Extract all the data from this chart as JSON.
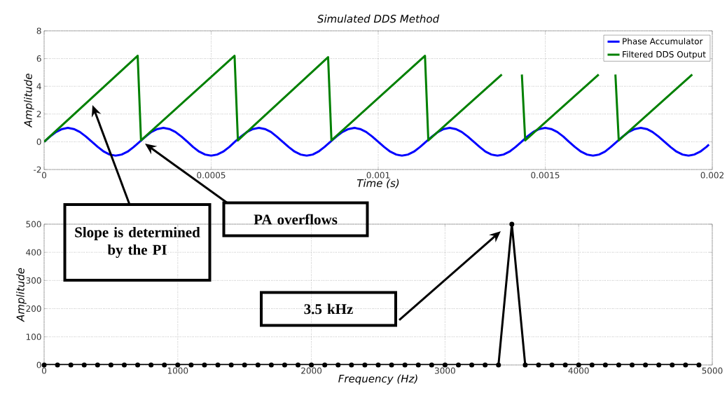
{
  "chart_data": [
    {
      "type": "line",
      "title": "Simulated DDS Method",
      "xlabel": "Time (s)",
      "ylabel": "Amplitude",
      "xlim": [
        0,
        0.002
      ],
      "ylim": [
        -2,
        8
      ],
      "xticks": [
        0,
        0.0005,
        0.001,
        0.0015,
        0.002
      ],
      "yticks": [
        -2,
        0,
        2,
        4,
        6,
        8
      ],
      "grid": true,
      "legend": "top right",
      "series": [
        {
          "name": "Phase Accumulator",
          "color": "#0000ff",
          "x": [
            0,
            1.8e-05,
            3.6e-05,
            5.4e-05,
            7.1e-05,
            8.9e-05,
            0.000107,
            0.000125,
            0.000143,
            0.000161,
            0.000179,
            0.000196,
            0.000214,
            0.000232,
            0.00025,
            0.000268,
            0.000286,
            0.000304,
            0.000321,
            0.000339,
            0.000357,
            0.000375,
            0.000393,
            0.000411,
            0.000429,
            0.000446,
            0.000464,
            0.000482,
            0.0005,
            0.000518,
            0.000536,
            0.000554,
            0.000571,
            0.000589,
            0.000607,
            0.000625,
            0.000643,
            0.000661,
            0.000679,
            0.000696,
            0.000714,
            0.000732,
            0.00075,
            0.000768,
            0.000786,
            0.000804,
            0.000821,
            0.000839,
            0.000857,
            0.000875,
            0.000893,
            0.000911,
            0.000929,
            0.000946,
            0.000964,
            0.000982,
            0.001,
            0.001018,
            0.001036,
            0.001054,
            0.001071,
            0.001089,
            0.001107,
            0.001125,
            0.001143,
            0.001161,
            0.001179,
            0.001196,
            0.001214,
            0.001232,
            0.00125,
            0.001268,
            0.001286,
            0.001304,
            0.001321,
            0.001339,
            0.001357,
            0.001375,
            0.001393,
            0.001411,
            0.001429,
            0.001446,
            0.001464,
            0.001482,
            0.0015,
            0.001518,
            0.001536,
            0.001554,
            0.001571,
            0.001589,
            0.001607,
            0.001625,
            0.001643,
            0.001661,
            0.001679,
            0.001696,
            0.001714,
            0.001732,
            0.00175,
            0.001768,
            0.001786,
            0.001804,
            0.001821,
            0.001839,
            0.001857,
            0.001875,
            0.001893,
            0.001911,
            0.001929,
            0.001946,
            0.001964,
            0.001982,
            0.00199
          ],
          "values": [
            0,
            0.38,
            0.71,
            0.92,
            1,
            0.92,
            0.71,
            0.38,
            0,
            -0.38,
            -0.71,
            -0.92,
            -1,
            -0.92,
            -0.71,
            -0.38,
            0,
            0.38,
            0.71,
            0.92,
            1,
            0.92,
            0.71,
            0.38,
            0,
            -0.38,
            -0.71,
            -0.92,
            -1,
            -0.92,
            -0.71,
            -0.38,
            0,
            0.38,
            0.71,
            0.92,
            1,
            0.92,
            0.71,
            0.38,
            0,
            -0.38,
            -0.71,
            -0.92,
            -1,
            -0.92,
            -0.71,
            -0.38,
            0,
            0.38,
            0.71,
            0.92,
            1,
            0.92,
            0.71,
            0.38,
            0,
            -0.38,
            -0.71,
            -0.92,
            -1,
            -0.92,
            -0.71,
            -0.38,
            0,
            0.38,
            0.71,
            0.92,
            1,
            0.92,
            0.71,
            0.38,
            0,
            -0.38,
            -0.71,
            -0.92,
            -1,
            -0.92,
            -0.71,
            -0.38,
            0,
            0.38,
            0.71,
            0.92,
            1,
            0.92,
            0.71,
            0.38,
            0,
            -0.38,
            -0.71,
            -0.92,
            -1,
            -0.92,
            -0.71,
            -0.38,
            0,
            0.38,
            0.71,
            0.92,
            1,
            0.92,
            0.71,
            0.38,
            0,
            -0.38,
            -0.71,
            -0.92,
            -1,
            -0.92,
            -0.71,
            -0.38,
            -0.2
          ]
        },
        {
          "name": "Filtered DDS Output",
          "color": "#008000",
          "x": [
            0,
            0.00028,
            0.00029,
            0.00057,
            0.00058,
            0.00085,
            0.00086,
            0.00114,
            0.00115,
            0.00137,
            0.0014,
            0.00143,
            0.00144,
            0.00166,
            0.0017,
            0.00171,
            0.00172,
            0.00194
          ],
          "values": [
            0,
            6.2,
            0.1,
            6.2,
            0.1,
            6.1,
            0.1,
            6.2,
            0.1,
            4.85,
            null,
            4.85,
            0.1,
            4.85,
            null,
            4.85,
            0.1,
            4.85
          ]
        }
      ],
      "annotations": [
        "Slope is determined by the PI",
        "PA overflows"
      ]
    },
    {
      "type": "line",
      "xlabel": "Frequency (Hz)",
      "ylabel": "Amplitude",
      "xlim": [
        0,
        5000
      ],
      "ylim": [
        0,
        500
      ],
      "xticks": [
        0,
        1000,
        2000,
        3000,
        4000,
        5000
      ],
      "yticks": [
        0,
        100,
        200,
        300,
        400,
        500
      ],
      "grid": true,
      "marker": "circle",
      "series": [
        {
          "color": "#000000",
          "x": [
            0,
            100,
            200,
            300,
            400,
            500,
            600,
            700,
            800,
            900,
            1000,
            1100,
            1200,
            1300,
            1400,
            1500,
            1600,
            1700,
            1800,
            1900,
            2000,
            2100,
            2200,
            2300,
            2400,
            2500,
            2600,
            2700,
            2800,
            2900,
            3000,
            3100,
            3200,
            3300,
            3400,
            3500,
            3600,
            3700,
            3800,
            3900,
            4000,
            4100,
            4200,
            4300,
            4400,
            4500,
            4600,
            4700,
            4800,
            4900
          ],
          "values": [
            0,
            0,
            0,
            0,
            0,
            0,
            0,
            0,
            0,
            0,
            0,
            0,
            0,
            0,
            0,
            0,
            0,
            0,
            0,
            0,
            0,
            0,
            0,
            0,
            0,
            0,
            0,
            0,
            0,
            0,
            0,
            0,
            0,
            0,
            0,
            500,
            0,
            0,
            0,
            0,
            0,
            0,
            0,
            0,
            0,
            0,
            0,
            0,
            0,
            0
          ]
        }
      ],
      "annotations": [
        "3.5 kHz"
      ]
    }
  ]
}
